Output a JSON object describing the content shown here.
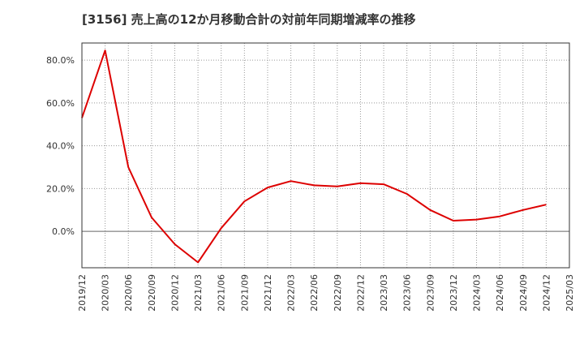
{
  "chart_data": {
    "type": "line",
    "title": "[3156]  売上高の12か月移動合計の対前年同期増減率の推移",
    "xlabel": "",
    "ylabel": "",
    "ylim": [
      -17,
      88
    ],
    "grid": true,
    "categories": [
      "2019/12",
      "2020/03",
      "2020/06",
      "2020/09",
      "2020/12",
      "2021/03",
      "2021/06",
      "2021/09",
      "2021/12",
      "2022/03",
      "2022/06",
      "2022/09",
      "2022/12",
      "2023/03",
      "2023/06",
      "2023/09",
      "2023/12",
      "2024/03",
      "2024/06",
      "2024/09",
      "2024/12",
      "2025/03"
    ],
    "y_ticks": [
      {
        "value": 80,
        "label": "80.0%"
      },
      {
        "value": 60,
        "label": "60.0%"
      },
      {
        "value": 40,
        "label": "40.0%"
      },
      {
        "value": 20,
        "label": "20.0%"
      },
      {
        "value": 0,
        "label": "0.0%"
      }
    ],
    "series": [
      {
        "name": "対前年同期増減率",
        "color": "#dd0000",
        "values": [
          53,
          84.5,
          30,
          6.5,
          -6,
          -14.5,
          1.5,
          14,
          20.5,
          23.5,
          21.5,
          21,
          22.5,
          22,
          17.5,
          10,
          5,
          5.5,
          7,
          10,
          12.5,
          null
        ]
      }
    ]
  }
}
